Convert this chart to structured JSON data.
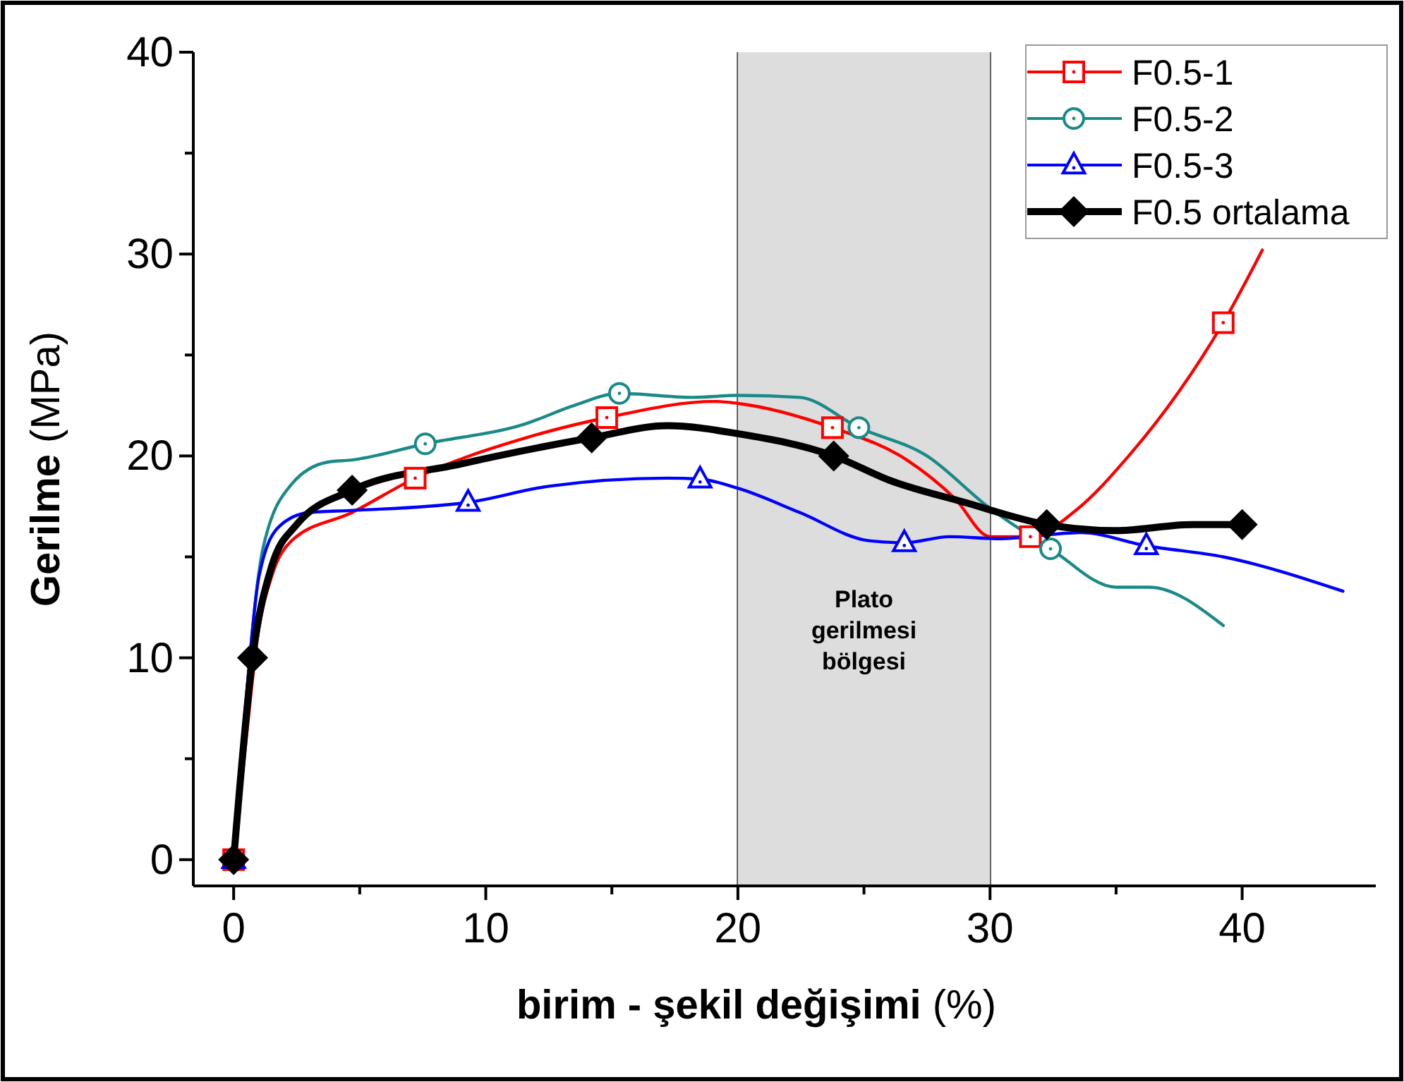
{
  "chart_data": {
    "type": "line",
    "xlabel": "birim - şekil değişimi (%)",
    "ylabel": "Gerilme (MPa)",
    "xlim": [
      -1.6,
      45.3
    ],
    "ylim": [
      -1.3,
      40
    ],
    "xticks": [
      0,
      {
        "value": 5,
        "label": null
      },
      10,
      {
        "value": 15,
        "label": null
      },
      20,
      {
        "value": 25,
        "label": null
      },
      30,
      {
        "value": 35,
        "label": null
      },
      40
    ],
    "yticks": [
      0,
      {
        "value": 5,
        "label": null
      },
      10,
      {
        "value": 15,
        "label": null
      },
      20,
      {
        "value": 25,
        "label": null
      },
      30,
      {
        "value": 35,
        "label": null
      },
      40
    ],
    "legend": "top right",
    "line_style": "solid",
    "bands": [
      {
        "axis": "x",
        "from": 20,
        "to": 30,
        "label": "Plato gerilmesi bölgesi",
        "color": "#dddddd"
      }
    ],
    "series": [
      {
        "name": "F0.5-1",
        "color": "#ff0000",
        "marker": "none",
        "x": [
          0,
          0.5,
          0.97,
          1.5,
          2.3,
          4.7,
          7.2,
          11.6,
          14.8,
          19.1,
          20,
          23.75,
          26.7,
          28.6,
          30,
          31.6,
          33.4,
          35.5,
          37.5,
          39.25,
          40.8
        ],
        "values": [
          0,
          6,
          11.2,
          14,
          15.8,
          17.2,
          18.9,
          20.9,
          21.9,
          22.7,
          22.6,
          21.4,
          19.8,
          17.9,
          16,
          16,
          17.3,
          20,
          23.2,
          26.6,
          30.2
        ]
      },
      {
        "name": "F0.5-2",
        "color": "#1a8a88",
        "marker": "none",
        "x": [
          0,
          0.4,
          1.16,
          2.3,
          3.75,
          4.7,
          7.6,
          11.6,
          13.5,
          15.3,
          18.2,
          20,
          22.45,
          24.8,
          27.5,
          29.9,
          32.4,
          35,
          36.3,
          39.25
        ],
        "values": [
          0,
          6.5,
          15.4,
          18.6,
          19.7,
          19.8,
          20.6,
          21.6,
          22.5,
          23.1,
          22.9,
          23,
          22.9,
          21.4,
          20,
          17.5,
          15.4,
          13.5,
          13.5,
          11.6
        ]
      },
      {
        "name": "F0.5-3",
        "color": "#0000ff",
        "marker": "none",
        "x": [
          0,
          0.5,
          1,
          1.8,
          3,
          4.7,
          9.3,
          12.5,
          17.2,
          18.5,
          20,
          22.45,
          25.2,
          26.6,
          28.4,
          30.3,
          33.6,
          36.2,
          39.25,
          44
        ],
        "values": [
          0,
          8,
          14,
          16.5,
          17.2,
          17.3,
          17.7,
          18.5,
          18.9,
          18.85,
          18.4,
          17.2,
          15.8,
          15.7,
          16,
          15.9,
          16.2,
          15.55,
          15,
          13.3
        ]
      },
      {
        "name": "F0.5 ortalama",
        "color": "#000000",
        "marker": "none",
        "x": [
          0,
          0.75,
          1.5,
          2.5,
          4.7,
          9,
          14.2,
          17.2,
          20,
          23.8,
          26,
          29,
          32.25,
          35,
          38,
          40
        ],
        "values": [
          0,
          10,
          14.5,
          16.6,
          18.3,
          19.6,
          20.9,
          21.5,
          21.1,
          20,
          18.8,
          17.7,
          16.6,
          16.3,
          16.6,
          16.6
        ]
      },
      {
        "type": "scatter",
        "color": "#ff0000",
        "marker": "square",
        "x": [
          0,
          7.2,
          14.8,
          23.75,
          31.6,
          39.25
        ],
        "values": [
          0,
          18.9,
          21.9,
          21.4,
          16,
          26.6
        ]
      },
      {
        "type": "scatter",
        "color": "#1a8a88",
        "marker": "circle",
        "x": [
          7.6,
          15.3,
          24.8,
          32.4
        ],
        "values": [
          20.6,
          23.1,
          21.4,
          15.4
        ]
      },
      {
        "type": "scatter",
        "color": "#0000ff",
        "marker": "triangle",
        "x": [
          0,
          9.3,
          18.5,
          26.6,
          36.2
        ],
        "values": [
          0,
          17.7,
          18.85,
          15.7,
          15.55
        ]
      },
      {
        "type": "scatter",
        "color": "#000000",
        "marker": "diamond",
        "x": [
          0,
          0.75,
          4.7,
          14.2,
          23.8,
          32.25,
          40
        ],
        "values": [
          0,
          10,
          18.3,
          20.9,
          20,
          16.6,
          16.6
        ]
      }
    ]
  }
}
